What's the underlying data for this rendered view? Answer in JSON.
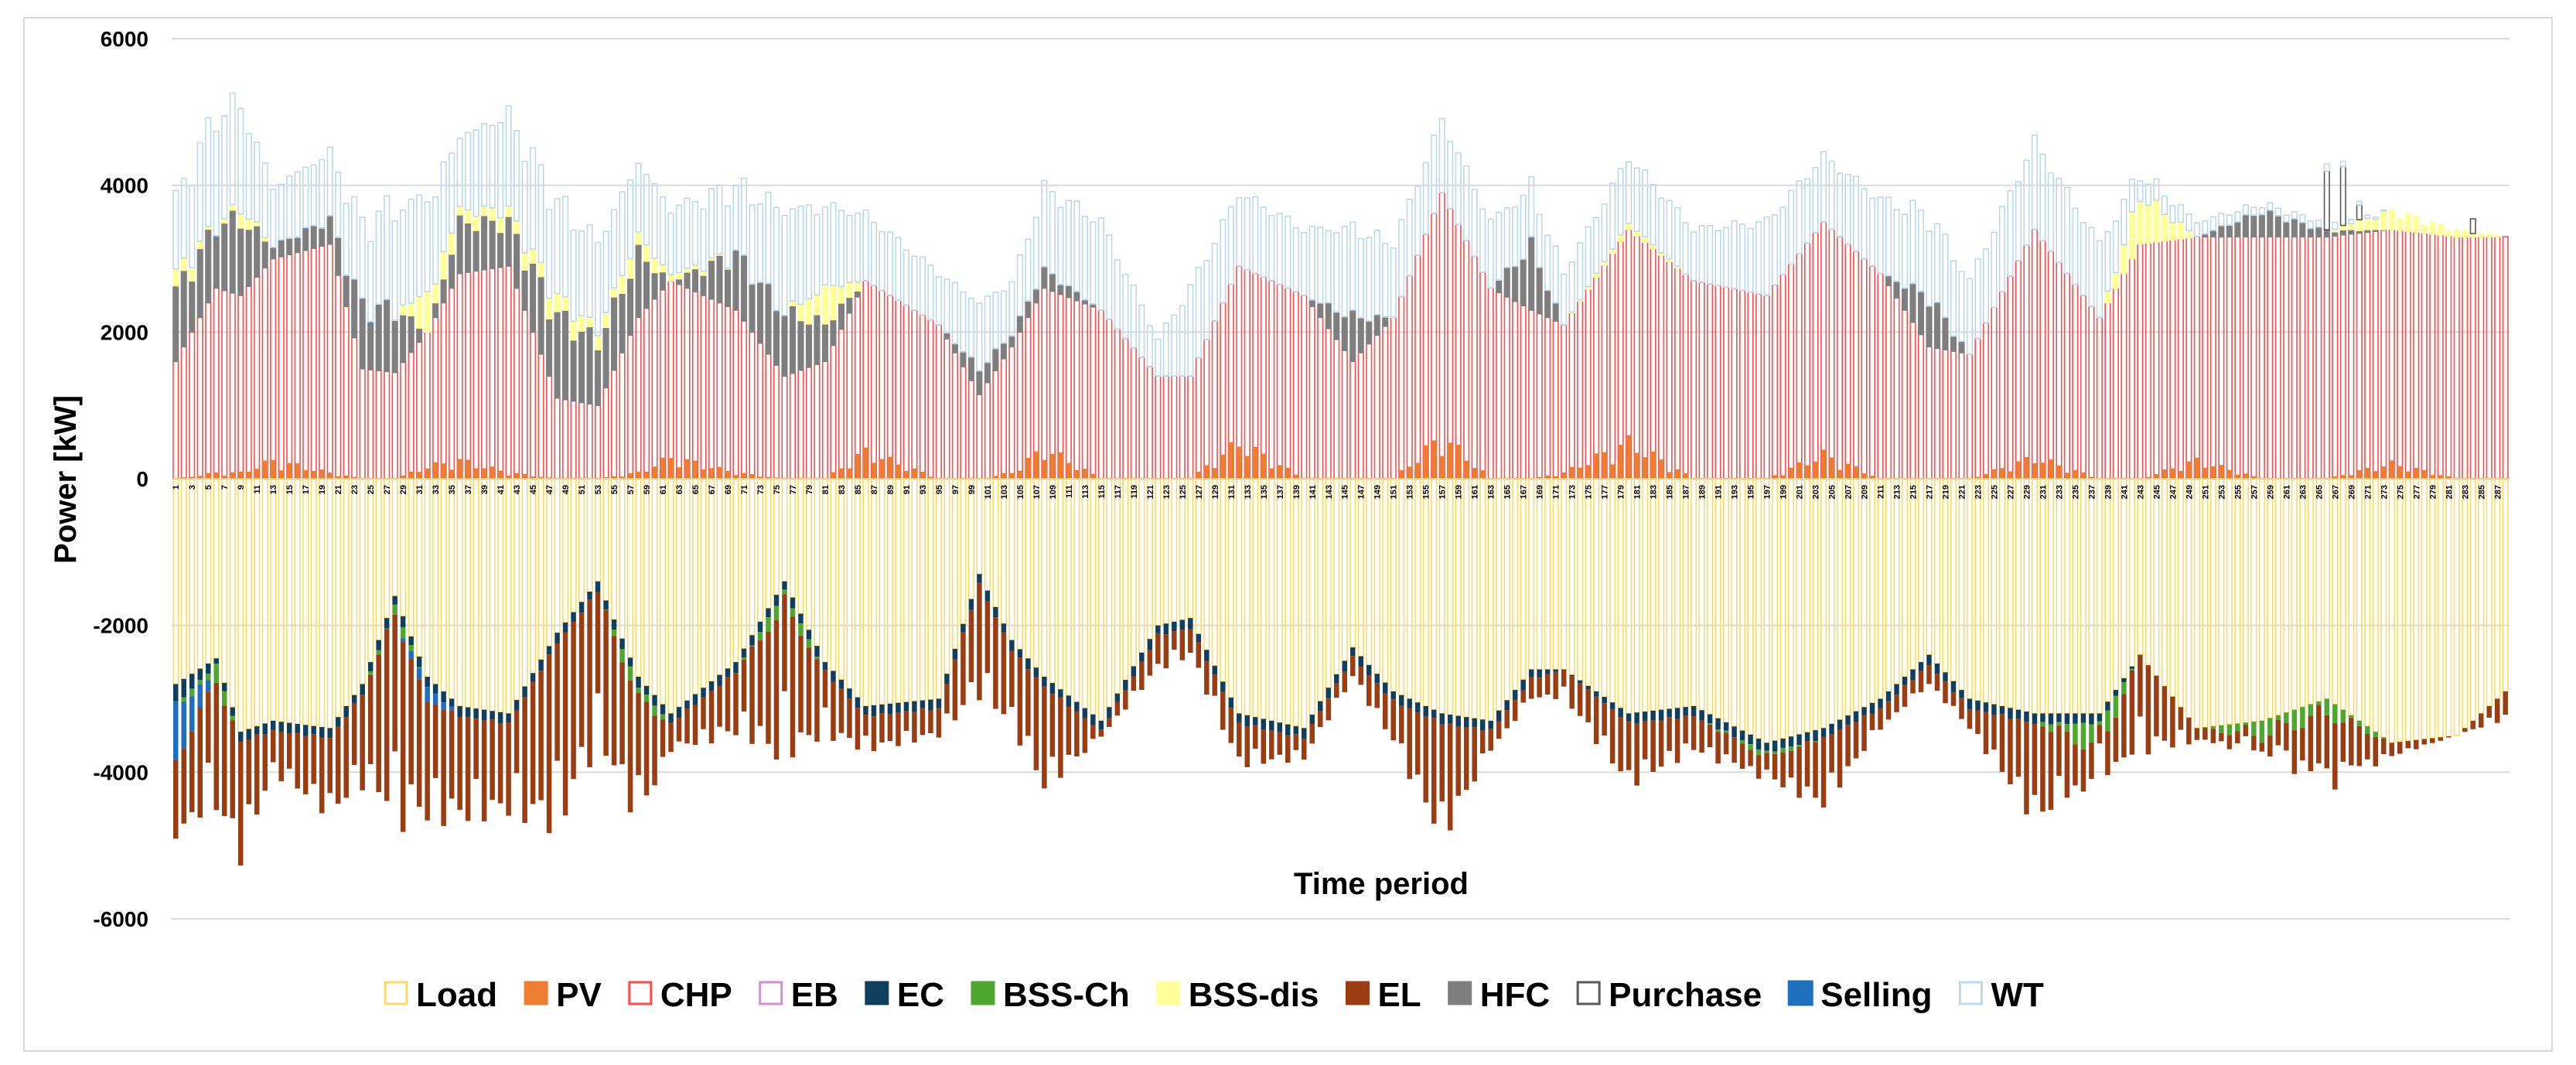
{
  "chart_data": {
    "type": "bar",
    "subtype": "stacked-bar",
    "title": "",
    "xlabel": "Time period",
    "ylabel": "Power [kW]",
    "ylim": [
      -6000,
      6000
    ],
    "y_ticks": [
      6000,
      4000,
      2000,
      0,
      -2000,
      -4000,
      -6000
    ],
    "y_tick_labels": [
      "6000",
      "4000",
      "2000",
      "0",
      "-2000",
      "-4000",
      "-6000"
    ],
    "x_range": [
      1,
      288
    ],
    "x_tick_step": 2,
    "grid": "horizontal",
    "legend_position": "bottom",
    "series": [
      {
        "name": "Load",
        "color": "#FFE699",
        "fill": "none",
        "sign": "negative"
      },
      {
        "name": "PV",
        "color": "#ED7D31",
        "fill": "solid",
        "sign": "positive"
      },
      {
        "name": "CHP",
        "color": "#FF4B4B",
        "fill": "none",
        "sign": "positive"
      },
      {
        "name": "EB",
        "color": "#D58FD0",
        "fill": "none",
        "sign": "negative"
      },
      {
        "name": "EC",
        "color": "#0F3F5C",
        "fill": "solid",
        "sign": "negative"
      },
      {
        "name": "BSS-Ch",
        "color": "#4EA72E",
        "fill": "solid",
        "sign": "negative"
      },
      {
        "name": "BSS-dis",
        "color": "#FFFF99",
        "fill": "solid",
        "sign": "positive"
      },
      {
        "name": "EL",
        "color": "#9A3D12",
        "fill": "solid",
        "sign": "negative"
      },
      {
        "name": "HFC",
        "color": "#7F7F7F",
        "fill": "solid",
        "sign": "positive"
      },
      {
        "name": "Purchase",
        "color": "#595959",
        "fill": "none",
        "sign": "positive"
      },
      {
        "name": "Selling",
        "color": "#1F6FBF",
        "fill": "solid",
        "sign": "negative"
      },
      {
        "name": "WT",
        "color": "#BDD7EE",
        "fill": "none",
        "sign": "positive"
      }
    ],
    "keyframes": [
      {
        "t": 1,
        "chp": 1600,
        "hfc": 1100,
        "pv": 0,
        "bssdis": 300,
        "wt": 1000,
        "load": 2800,
        "ec": 300,
        "bssch": 0,
        "el": 1100,
        "sell": 800
      },
      {
        "t": 6,
        "chp": 2600,
        "hfc": 1000,
        "pv": 100,
        "bssdis": 0,
        "wt": 1500,
        "load": 2450,
        "ec": 100,
        "bssch": 300,
        "el": 1800,
        "sell": 0
      },
      {
        "t": 9,
        "chp": 2500,
        "hfc": 1200,
        "pv": 100,
        "bssdis": 200,
        "wt": 1400,
        "load": 3450,
        "ec": 150,
        "bssch": 0,
        "el": 1700,
        "sell": 0
      },
      {
        "t": 13,
        "chp": 3000,
        "hfc": 200,
        "pv": 300,
        "bssdis": 0,
        "wt": 800,
        "load": 3300,
        "ec": 150,
        "bssch": 0,
        "el": 600,
        "sell": 0
      },
      {
        "t": 20,
        "chp": 3200,
        "hfc": 400,
        "pv": 100,
        "bssdis": 0,
        "wt": 900,
        "load": 3400,
        "ec": 150,
        "bssch": 0,
        "el": 1100,
        "sell": 0
      },
      {
        "t": 24,
        "chp": 1500,
        "hfc": 1000,
        "pv": 0,
        "bssdis": 0,
        "wt": 1100,
        "load": 2800,
        "ec": 150,
        "bssch": 0,
        "el": 1300,
        "sell": 0
      },
      {
        "t": 28,
        "chp": 1450,
        "hfc": 1000,
        "pv": 0,
        "bssdis": 0,
        "wt": 1400,
        "load": 1600,
        "ec": 150,
        "bssch": 200,
        "el": 2900,
        "sell": 0
      },
      {
        "t": 32,
        "chp": 2000,
        "hfc": 0,
        "pv": 200,
        "bssdis": 600,
        "wt": 1300,
        "load": 2700,
        "ec": 150,
        "bssch": 0,
        "el": 1700,
        "sell": 200
      },
      {
        "t": 36,
        "chp": 2800,
        "hfc": 800,
        "pv": 300,
        "bssdis": 200,
        "wt": 1000,
        "load": 3100,
        "ec": 150,
        "bssch": 0,
        "el": 1500,
        "sell": 0
      },
      {
        "t": 42,
        "chp": 2900,
        "hfc": 700,
        "pv": 100,
        "bssdis": 200,
        "wt": 1300,
        "load": 3200,
        "ec": 150,
        "bssch": 0,
        "el": 1300,
        "sell": 0
      },
      {
        "t": 48,
        "chp": 1100,
        "hfc": 1300,
        "pv": 0,
        "bssdis": 300,
        "wt": 1300,
        "load": 2100,
        "ec": 150,
        "bssch": 0,
        "el": 2700,
        "sell": 0
      },
      {
        "t": 53,
        "chp": 1000,
        "hfc": 1000,
        "pv": 0,
        "bssdis": 200,
        "wt": 1200,
        "load": 1400,
        "ec": 150,
        "bssch": 0,
        "el": 2200,
        "sell": 0
      },
      {
        "t": 58,
        "chp": 2200,
        "hfc": 1000,
        "pv": 100,
        "bssdis": 300,
        "wt": 1000,
        "load": 2700,
        "ec": 150,
        "bssch": 300,
        "el": 1700,
        "sell": 0
      },
      {
        "t": 62,
        "chp": 2700,
        "hfc": 0,
        "pv": 350,
        "bssdis": 100,
        "wt": 900,
        "load": 3200,
        "ec": 150,
        "bssch": 0,
        "el": 400,
        "sell": 0
      },
      {
        "t": 70,
        "chp": 2300,
        "hfc": 900,
        "pv": 100,
        "bssdis": 0,
        "wt": 900,
        "load": 2500,
        "ec": 150,
        "bssch": 0,
        "el": 900,
        "sell": 0
      },
      {
        "t": 76,
        "chp": 1400,
        "hfc": 1000,
        "pv": 0,
        "bssdis": 0,
        "wt": 1400,
        "load": 1400,
        "ec": 150,
        "bssch": 300,
        "el": 2200,
        "sell": 0
      },
      {
        "t": 81,
        "chp": 1600,
        "hfc": 600,
        "pv": 0,
        "bssdis": 600,
        "wt": 1100,
        "load": 2500,
        "ec": 150,
        "bssch": 0,
        "el": 900,
        "sell": 0
      },
      {
        "t": 86,
        "chp": 2700,
        "hfc": 0,
        "pv": 450,
        "bssdis": 0,
        "wt": 900,
        "load": 3100,
        "ec": 150,
        "bssch": 0,
        "el": 500,
        "sell": 0
      },
      {
        "t": 95,
        "chp": 2100,
        "hfc": 0,
        "pv": 0,
        "bssdis": 0,
        "wt": 700,
        "load": 3000,
        "ec": 150,
        "bssch": 0,
        "el": 400,
        "sell": 0
      },
      {
        "t": 100,
        "chp": 1150,
        "hfc": 400,
        "pv": 0,
        "bssdis": 0,
        "wt": 900,
        "load": 1300,
        "ec": 150,
        "bssch": 0,
        "el": 1600,
        "sell": 0
      },
      {
        "t": 104,
        "chp": 1800,
        "hfc": 200,
        "pv": 100,
        "bssdis": 0,
        "wt": 700,
        "load": 2200,
        "ec": 150,
        "bssch": 0,
        "el": 1100,
        "sell": 0
      },
      {
        "t": 108,
        "chp": 2600,
        "hfc": 300,
        "pv": 500,
        "bssdis": 0,
        "wt": 1100,
        "load": 2700,
        "ec": 150,
        "bssch": 0,
        "el": 1500,
        "sell": 0
      },
      {
        "t": 115,
        "chp": 2300,
        "hfc": 0,
        "pv": 0,
        "bssdis": 0,
        "wt": 1200,
        "load": 3300,
        "ec": 150,
        "bssch": 0,
        "el": 100,
        "sell": 0
      },
      {
        "t": 122,
        "chp": 1400,
        "hfc": 0,
        "pv": 0,
        "bssdis": 0,
        "wt": 500,
        "load": 2000,
        "ec": 150,
        "bssch": 0,
        "el": 500,
        "sell": 0
      },
      {
        "t": 126,
        "chp": 1400,
        "hfc": 0,
        "pv": 0,
        "bssdis": 0,
        "wt": 1200,
        "load": 1900,
        "ec": 150,
        "bssch": 0,
        "el": 400,
        "sell": 0
      },
      {
        "t": 132,
        "chp": 2900,
        "hfc": 0,
        "pv": 600,
        "bssdis": 0,
        "wt": 1000,
        "load": 3200,
        "ec": 150,
        "bssch": 0,
        "el": 600,
        "sell": 0
      },
      {
        "t": 140,
        "chp": 2500,
        "hfc": 0,
        "pv": 0,
        "bssdis": 0,
        "wt": 900,
        "load": 3400,
        "ec": 150,
        "bssch": 0,
        "el": 300,
        "sell": 0
      },
      {
        "t": 146,
        "chp": 1600,
        "hfc": 700,
        "pv": 0,
        "bssdis": 0,
        "wt": 1200,
        "load": 2300,
        "ec": 150,
        "bssch": 0,
        "el": 300,
        "sell": 0
      },
      {
        "t": 151,
        "chp": 2200,
        "hfc": 0,
        "pv": 0,
        "bssdis": 0,
        "wt": 1000,
        "load": 2900,
        "ec": 150,
        "bssch": 0,
        "el": 600,
        "sell": 0
      },
      {
        "t": 157,
        "chp": 3900,
        "hfc": 0,
        "pv": 700,
        "bssdis": 0,
        "wt": 1000,
        "load": 3200,
        "ec": 150,
        "bssch": 0,
        "el": 1700,
        "sell": 0
      },
      {
        "t": 163,
        "chp": 2600,
        "hfc": 0,
        "pv": 0,
        "bssdis": 0,
        "wt": 900,
        "load": 3300,
        "ec": 150,
        "bssch": 0,
        "el": 300,
        "sell": 0
      },
      {
        "t": 168,
        "chp": 2300,
        "hfc": 1000,
        "pv": 0,
        "bssdis": 0,
        "wt": 800,
        "load": 2600,
        "ec": 150,
        "bssch": 0,
        "el": 300,
        "sell": 0
      },
      {
        "t": 172,
        "chp": 2100,
        "hfc": 0,
        "pv": 100,
        "bssdis": 0,
        "wt": 700,
        "load": 2600,
        "ec": 0,
        "bssch": 0,
        "el": 400,
        "sell": 0
      },
      {
        "t": 180,
        "chp": 3400,
        "hfc": 0,
        "pv": 600,
        "bssdis": 100,
        "wt": 900,
        "load": 3200,
        "ec": 150,
        "bssch": 0,
        "el": 900,
        "sell": 0
      },
      {
        "t": 188,
        "chp": 2700,
        "hfc": 0,
        "pv": 0,
        "bssdis": 0,
        "wt": 700,
        "load": 3100,
        "ec": 150,
        "bssch": 0,
        "el": 500,
        "sell": 0
      },
      {
        "t": 197,
        "chp": 2500,
        "hfc": 0,
        "pv": 0,
        "bssdis": 0,
        "wt": 1000,
        "load": 3600,
        "ec": 150,
        "bssch": 100,
        "el": 300,
        "sell": 0
      },
      {
        "t": 204,
        "chp": 3500,
        "hfc": 0,
        "pv": 400,
        "bssdis": 0,
        "wt": 900,
        "load": 3400,
        "ec": 150,
        "bssch": 0,
        "el": 1000,
        "sell": 0
      },
      {
        "t": 211,
        "chp": 2800,
        "hfc": 0,
        "pv": 0,
        "bssdis": 0,
        "wt": 1000,
        "load": 3000,
        "ec": 150,
        "bssch": 0,
        "el": 300,
        "sell": 0
      },
      {
        "t": 217,
        "chp": 1800,
        "hfc": 800,
        "pv": 0,
        "bssdis": 0,
        "wt": 1100,
        "load": 2400,
        "ec": 150,
        "bssch": 0,
        "el": 300,
        "sell": 0
      },
      {
        "t": 222,
        "chp": 1700,
        "hfc": 0,
        "pv": 0,
        "bssdis": 0,
        "wt": 1000,
        "load": 3000,
        "ec": 150,
        "bssch": 0,
        "el": 300,
        "sell": 0
      },
      {
        "t": 230,
        "chp": 3400,
        "hfc": 0,
        "pv": 350,
        "bssdis": 0,
        "wt": 1200,
        "load": 3200,
        "ec": 150,
        "bssch": 0,
        "el": 1400,
        "sell": 0
      },
      {
        "t": 238,
        "chp": 2200,
        "hfc": 0,
        "pv": 0,
        "bssdis": 0,
        "wt": 1000,
        "load": 3200,
        "ec": 150,
        "bssch": 500,
        "el": 400,
        "sell": 0
      },
      {
        "t": 243,
        "chp": 3200,
        "hfc": 0,
        "pv": 0,
        "bssdis": 800,
        "wt": 300,
        "load": 2400,
        "ec": 0,
        "bssch": 0,
        "el": 1400,
        "sell": 0
      },
      {
        "t": 250,
        "chp": 3300,
        "hfc": 0,
        "pv": 300,
        "bssdis": 0,
        "wt": 200,
        "load": 3400,
        "ec": 0,
        "bssch": 0,
        "el": 200,
        "sell": 0
      },
      {
        "t": 258,
        "chp": 3300,
        "hfc": 400,
        "pv": 0,
        "bssdis": 0,
        "wt": 100,
        "load": 3300,
        "ec": 0,
        "bssch": 300,
        "el": 200,
        "sell": 0
      },
      {
        "t": 266,
        "chp": 3300,
        "hfc": 100,
        "pv": 0,
        "bssdis": 0,
        "wt": 100,
        "load": 3000,
        "ec": 0,
        "bssch": 300,
        "el": 1000,
        "sell": 0
      },
      {
        "t": 274,
        "chp": 3400,
        "hfc": 0,
        "pv": 250,
        "bssdis": 300,
        "wt": 0,
        "load": 3600,
        "ec": 0,
        "bssch": 0,
        "el": 200,
        "sell": 0
      },
      {
        "t": 282,
        "chp": 3300,
        "hfc": 0,
        "pv": 0,
        "bssdis": 100,
        "wt": 0,
        "load": 3500,
        "ec": 0,
        "bssch": 0,
        "el": 0,
        "sell": 0
      },
      {
        "t": 288,
        "chp": 3300,
        "hfc": 0,
        "pv": 0,
        "bssdis": 0,
        "wt": 0,
        "load": 2900,
        "ec": 0,
        "bssch": 0,
        "el": 400,
        "sell": 0
      }
    ],
    "purchase_events": [
      {
        "t": 266,
        "value": 800
      },
      {
        "t": 268,
        "value": 800
      },
      {
        "t": 270,
        "value": 200
      },
      {
        "t": 284,
        "value": 200
      }
    ]
  }
}
